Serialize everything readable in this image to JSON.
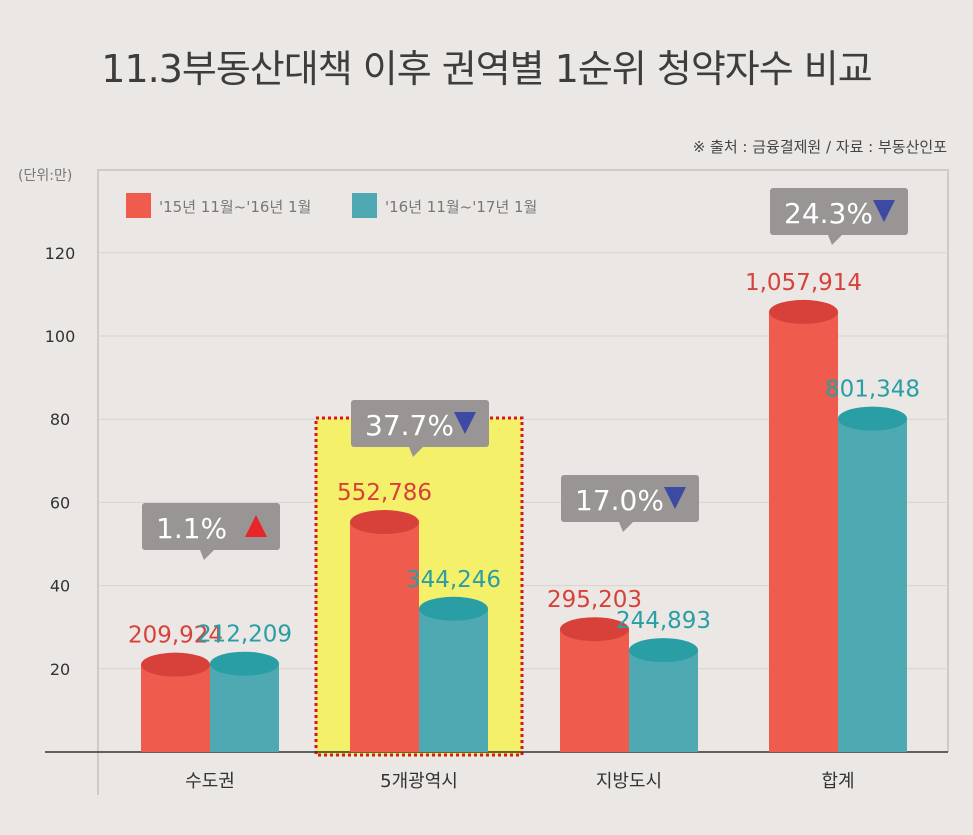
{
  "title": "11.3부동산대책 이후 권역별 1순위 청약자수 비교",
  "source": "※ 출처 : 금융결제원 / 자료 : 부동산인포",
  "chart_data": {
    "type": "bar",
    "unit_label": "(단위:만)",
    "categories": [
      "수도권",
      "5개광역시",
      "지방도시",
      "합계"
    ],
    "series": [
      {
        "name": "'15년 11월~'16년 1월",
        "color": "#ef5b4c",
        "values": [
          209924,
          552786,
          295203,
          1057914
        ],
        "labels": [
          "209,924",
          "552,786",
          "295,203",
          "1,057,914"
        ]
      },
      {
        "name": "'16년 11월~'17년 1월",
        "color": "#4ea9b2",
        "values": [
          212209,
          344246,
          244893,
          801348
        ],
        "labels": [
          "212,209",
          "344,246",
          "244,893",
          "801,348"
        ]
      }
    ],
    "changes": [
      {
        "text": "1.1%",
        "direction": "up",
        "color": "#e8262a"
      },
      {
        "text": "37.7%",
        "direction": "down",
        "color": "#3d4aa3"
      },
      {
        "text": "17.0%",
        "direction": "down",
        "color": "#3d4aa3"
      },
      {
        "text": "24.3%",
        "direction": "down",
        "color": "#3d4aa3"
      }
    ],
    "highlighted_category": "5개광역시",
    "yticks": [
      20,
      40,
      60,
      80,
      100,
      120
    ],
    "ylim": [
      0,
      130
    ],
    "grid": true,
    "legend_position": "top-left"
  }
}
